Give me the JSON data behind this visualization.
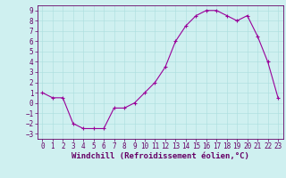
{
  "x": [
    0,
    1,
    2,
    3,
    4,
    5,
    6,
    7,
    8,
    9,
    10,
    11,
    12,
    13,
    14,
    15,
    16,
    17,
    18,
    19,
    20,
    21,
    22,
    23
  ],
  "y": [
    1,
    0.5,
    0.5,
    -2,
    -2.5,
    -2.5,
    -2.5,
    -0.5,
    -0.5,
    0.0,
    1.0,
    2.0,
    3.5,
    6.0,
    7.5,
    8.5,
    9.0,
    9.0,
    8.5,
    8.0,
    8.5,
    6.5,
    4.0,
    0.5
  ],
  "line_color": "#990099",
  "marker": "+",
  "marker_size": 3,
  "marker_linewidth": 0.8,
  "line_width": 0.8,
  "background_color": "#cff0f0",
  "grid_color": "#aadddd",
  "xlabel": "Windchill (Refroidissement éolien,°C)",
  "xlim": [
    -0.5,
    23.5
  ],
  "ylim": [
    -3.5,
    9.5
  ],
  "yticks": [
    -3,
    -2,
    -1,
    0,
    1,
    2,
    3,
    4,
    5,
    6,
    7,
    8,
    9
  ],
  "xticks": [
    0,
    1,
    2,
    3,
    4,
    5,
    6,
    7,
    8,
    9,
    10,
    11,
    12,
    13,
    14,
    15,
    16,
    17,
    18,
    19,
    20,
    21,
    22,
    23
  ],
  "tick_fontsize": 5.5,
  "xlabel_fontsize": 6.5,
  "tick_color": "#660066",
  "spine_color": "#660066"
}
